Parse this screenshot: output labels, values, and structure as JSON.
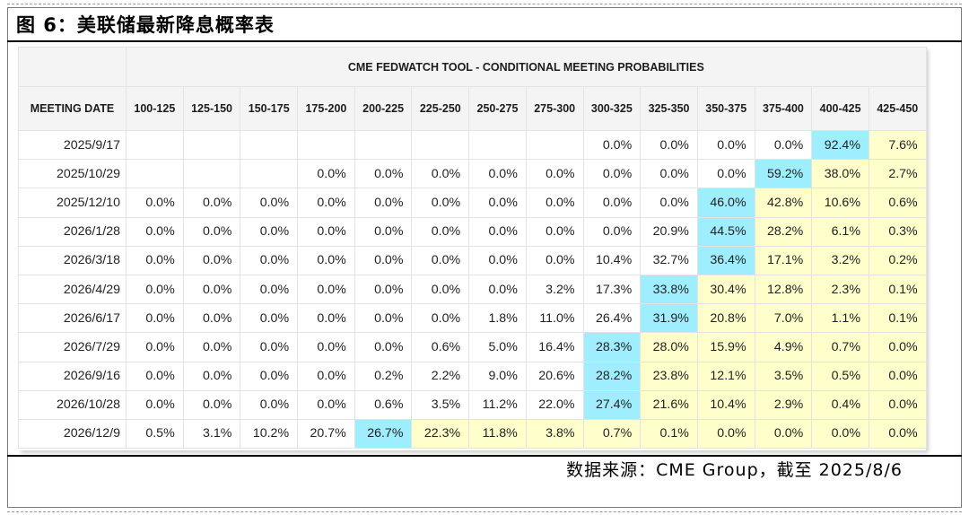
{
  "figure": {
    "title": "图 6：美联储最新降息概率表",
    "source": "数据来源：CME Group，截至 2025/8/6"
  },
  "table": {
    "tool_title": "CME FEDWATCH TOOL - CONDITIONAL MEETING PROBABILITIES",
    "date_header": "MEETING DATE",
    "columns": [
      "100-125",
      "125-150",
      "150-175",
      "175-200",
      "200-225",
      "225-250",
      "250-275",
      "275-300",
      "300-325",
      "325-350",
      "350-375",
      "375-400",
      "400-425",
      "425-450"
    ],
    "rows": [
      {
        "date": "2025/9/17",
        "values": [
          "",
          "",
          "",
          "",
          "",
          "",
          "",
          "",
          "0.0%",
          "0.0%",
          "0.0%",
          "0.0%",
          "92.4%",
          "7.6%"
        ],
        "highlight_col": 12
      },
      {
        "date": "2025/10/29",
        "values": [
          "",
          "",
          "",
          "0.0%",
          "0.0%",
          "0.0%",
          "0.0%",
          "0.0%",
          "0.0%",
          "0.0%",
          "0.0%",
          "59.2%",
          "38.0%",
          "2.7%"
        ],
        "highlight_col": 11
      },
      {
        "date": "2025/12/10",
        "values": [
          "0.0%",
          "0.0%",
          "0.0%",
          "0.0%",
          "0.0%",
          "0.0%",
          "0.0%",
          "0.0%",
          "0.0%",
          "0.0%",
          "46.0%",
          "42.8%",
          "10.6%",
          "0.6%"
        ],
        "highlight_col": 10
      },
      {
        "date": "2026/1/28",
        "values": [
          "0.0%",
          "0.0%",
          "0.0%",
          "0.0%",
          "0.0%",
          "0.0%",
          "0.0%",
          "0.0%",
          "0.0%",
          "20.9%",
          "44.5%",
          "28.2%",
          "6.1%",
          "0.3%"
        ],
        "highlight_col": 10
      },
      {
        "date": "2026/3/18",
        "values": [
          "0.0%",
          "0.0%",
          "0.0%",
          "0.0%",
          "0.0%",
          "0.0%",
          "0.0%",
          "0.0%",
          "10.4%",
          "32.7%",
          "36.4%",
          "17.1%",
          "3.2%",
          "0.2%"
        ],
        "highlight_col": 10
      },
      {
        "date": "2026/4/29",
        "values": [
          "0.0%",
          "0.0%",
          "0.0%",
          "0.0%",
          "0.0%",
          "0.0%",
          "0.0%",
          "3.2%",
          "17.3%",
          "33.8%",
          "30.4%",
          "12.8%",
          "2.3%",
          "0.1%"
        ],
        "highlight_col": 9
      },
      {
        "date": "2026/6/17",
        "values": [
          "0.0%",
          "0.0%",
          "0.0%",
          "0.0%",
          "0.0%",
          "0.0%",
          "1.8%",
          "11.0%",
          "26.4%",
          "31.9%",
          "20.8%",
          "7.0%",
          "1.1%",
          "0.1%"
        ],
        "highlight_col": 9
      },
      {
        "date": "2026/7/29",
        "values": [
          "0.0%",
          "0.0%",
          "0.0%",
          "0.0%",
          "0.0%",
          "0.6%",
          "5.0%",
          "16.4%",
          "28.3%",
          "28.0%",
          "15.9%",
          "4.9%",
          "0.7%",
          "0.0%"
        ],
        "highlight_col": 8
      },
      {
        "date": "2026/9/16",
        "values": [
          "0.0%",
          "0.0%",
          "0.0%",
          "0.0%",
          "0.2%",
          "2.2%",
          "9.0%",
          "20.6%",
          "28.2%",
          "23.8%",
          "12.1%",
          "3.5%",
          "0.5%",
          "0.0%"
        ],
        "highlight_col": 8
      },
      {
        "date": "2026/10/28",
        "values": [
          "0.0%",
          "0.0%",
          "0.0%",
          "0.0%",
          "0.6%",
          "3.5%",
          "11.2%",
          "22.0%",
          "27.4%",
          "21.6%",
          "10.4%",
          "2.9%",
          "0.4%",
          "0.0%"
        ],
        "highlight_col": 8
      },
      {
        "date": "2026/12/9",
        "values": [
          "0.5%",
          "3.1%",
          "10.2%",
          "20.7%",
          "26.7%",
          "22.3%",
          "11.8%",
          "3.8%",
          "0.7%",
          "0.1%",
          "0.0%",
          "0.0%",
          "0.0%",
          "0.0%"
        ],
        "highlight_col": 4
      }
    ]
  },
  "colors": {
    "highlight_max": "#9eeeff",
    "current_range_or_higher": "#ffffcc",
    "header_bg": "#f4f4f4"
  }
}
